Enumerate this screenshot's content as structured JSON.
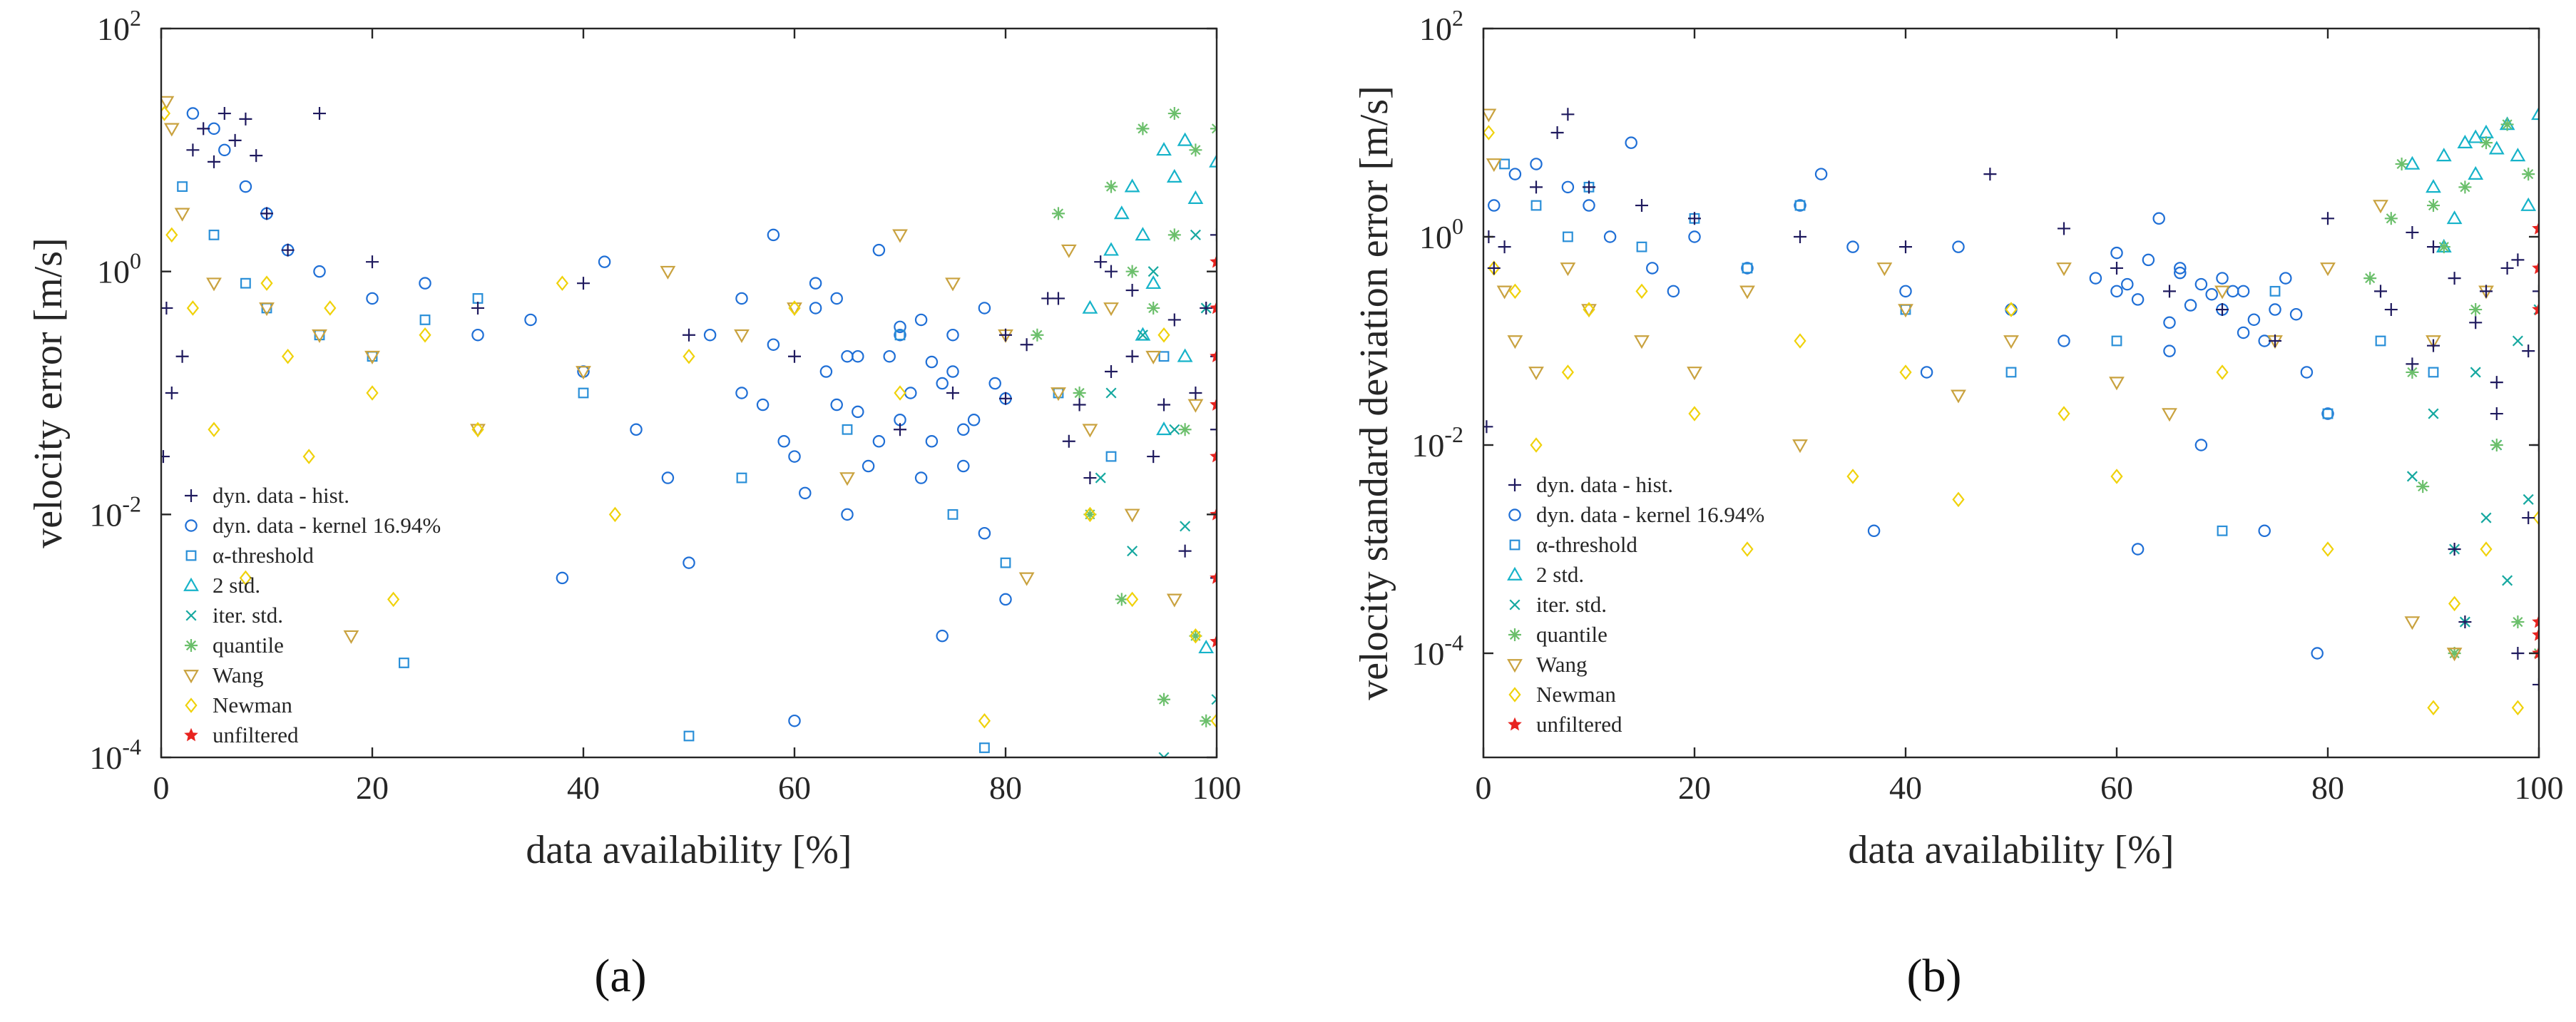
{
  "colors": {
    "hist": "#1f1a5e",
    "kernel": "#1f6fd6",
    "alpha": "#2a8fd8",
    "std2": "#16b3c9",
    "iter": "#16a8a0",
    "quantile": "#6bbf6b",
    "wang": "#c9a23f",
    "newman": "#f0d20a",
    "unfiltered": "#e8231f"
  },
  "legend_labels": {
    "hist": "dyn. data - hist.",
    "kernel": "dyn. data - kernel 16.94%",
    "alpha": "α-threshold",
    "std2": "2 std.",
    "iter": "iter. std.",
    "quantile": "quantile",
    "wang": "Wang",
    "newman": "Newman",
    "unfiltered": "unfiltered"
  },
  "chart_data": [
    {
      "type": "scatter",
      "panel_label": "(a)",
      "xlabel": "data availability [%]",
      "ylabel": "velocity error [m/s]",
      "xlim": [
        0,
        100
      ],
      "ylim": [
        0.0001,
        100
      ],
      "yscale": "log",
      "xticks": [
        0,
        20,
        40,
        60,
        80,
        100
      ],
      "yticks": [
        {
          "base": "10",
          "exp": "-4",
          "value": 0.0001
        },
        {
          "base": "10",
          "exp": "-2",
          "value": 0.01
        },
        {
          "base": "10",
          "exp": "0",
          "value": 1
        },
        {
          "base": "10",
          "exp": "2",
          "value": 100
        }
      ],
      "legend_position": "lower-left",
      "series": [
        {
          "key": "hist",
          "marker": "plus",
          "x": [
            0.2,
            0.5,
            1,
            2,
            3,
            4,
            5,
            6,
            7,
            8,
            9,
            10,
            12,
            15,
            20,
            30,
            40,
            50,
            60,
            70,
            75,
            80,
            85,
            88,
            90,
            92,
            95,
            97,
            99,
            100,
            100,
            100,
            100,
            98,
            96,
            94,
            92,
            90,
            89,
            87,
            86,
            84,
            82,
            80
          ],
          "y": [
            0.03,
            0.5,
            0.1,
            0.2,
            10,
            15,
            8,
            20,
            12,
            18,
            9,
            3,
            1.5,
            20,
            1.2,
            0.5,
            0.8,
            0.3,
            0.2,
            0.05,
            0.1,
            0.3,
            0.6,
            0.02,
            1,
            0.2,
            0.08,
            0.005,
            0.5,
            0.2,
            0.05,
            0.003,
            2,
            0.1,
            0.4,
            0.03,
            0.7,
            0.15,
            1.2,
            0.08,
            0.04,
            0.6,
            0.25,
            0.09
          ]
        },
        {
          "key": "kernel",
          "marker": "circle",
          "x": [
            3,
            5,
            6,
            8,
            10,
            12,
            15,
            20,
            25,
            30,
            35,
            38,
            40,
            42,
            45,
            48,
            50,
            52,
            55,
            58,
            60,
            62,
            64,
            65,
            66,
            68,
            70,
            72,
            74,
            75,
            76,
            78,
            80,
            55,
            60,
            62,
            65,
            68,
            70,
            72,
            74,
            76,
            78,
            80,
            63,
            66,
            69,
            71,
            73,
            75,
            77,
            79,
            67,
            70,
            73,
            58,
            61,
            64,
            57,
            59
          ],
          "y": [
            20,
            15,
            10,
            5,
            3,
            1.5,
            1,
            0.6,
            0.8,
            0.3,
            0.4,
            0.003,
            0.15,
            1.2,
            0.05,
            0.02,
            0.004,
            0.3,
            0.6,
            2,
            0.0002,
            0.5,
            0.08,
            0.01,
            0.2,
            0.04,
            0.3,
            0.02,
            0.001,
            0.15,
            0.05,
            0.007,
            0.002,
            0.1,
            0.03,
            0.8,
            0.2,
            1.5,
            0.06,
            0.4,
            0.12,
            0.025,
            0.5,
            0.09,
            0.15,
            0.07,
            0.2,
            0.1,
            0.04,
            0.3,
            0.06,
            0.12,
            0.025,
            0.35,
            0.18,
            0.25,
            0.015,
            0.6,
            0.08,
            0.04
          ]
        },
        {
          "key": "alpha",
          "marker": "square",
          "x": [
            2,
            5,
            8,
            10,
            15,
            20,
            23,
            25,
            30,
            40,
            50,
            55,
            65,
            70,
            75,
            78,
            80,
            85,
            90,
            95
          ],
          "y": [
            5,
            2,
            0.8,
            0.5,
            0.3,
            0.2,
            0.0006,
            0.4,
            0.6,
            0.1,
            0.00015,
            0.02,
            0.05,
            0.3,
            0.01,
            0.00012,
            0.004,
            0.1,
            0.03,
            0.2
          ]
        },
        {
          "key": "std2",
          "marker": "triangle-up",
          "x": [
            88,
            90,
            91,
            92,
            93,
            94,
            95,
            96,
            97,
            98,
            99,
            100,
            95,
            97,
            93
          ],
          "y": [
            0.5,
            1.5,
            3,
            5,
            2,
            0.8,
            10,
            6,
            0.2,
            4,
            0.0008,
            8,
            0.05,
            12,
            0.3
          ]
        },
        {
          "key": "iter",
          "marker": "cross",
          "x": [
            89,
            90,
            92,
            93,
            94,
            95,
            96,
            97,
            98,
            99,
            100
          ],
          "y": [
            0.02,
            0.1,
            0.005,
            0.3,
            1,
            0.0001,
            0.05,
            0.008,
            2,
            0.5,
            0.0003
          ]
        },
        {
          "key": "quantile",
          "marker": "asterisk",
          "x": [
            83,
            85,
            87,
            88,
            90,
            91,
            92,
            93,
            94,
            95,
            96,
            97,
            98,
            99,
            100,
            96,
            98
          ],
          "y": [
            0.3,
            3,
            0.1,
            0.01,
            5,
            0.002,
            1,
            15,
            0.5,
            0.0003,
            20,
            0.05,
            10,
            0.0002,
            15,
            2,
            0.001
          ]
        },
        {
          "key": "wang",
          "marker": "triangle-down",
          "x": [
            0.5,
            1,
            2,
            5,
            10,
            15,
            18,
            20,
            30,
            40,
            48,
            55,
            60,
            65,
            70,
            75,
            80,
            82,
            85,
            86,
            88,
            90,
            92,
            94,
            96,
            98
          ],
          "y": [
            25,
            15,
            3,
            0.8,
            0.5,
            0.3,
            0.001,
            0.2,
            0.05,
            0.15,
            1,
            0.3,
            0.5,
            0.02,
            2,
            0.8,
            0.3,
            0.003,
            0.1,
            1.5,
            0.05,
            0.5,
            0.01,
            0.2,
            0.002,
            0.08
          ]
        },
        {
          "key": "newman",
          "marker": "diamond",
          "x": [
            0.3,
            1,
            3,
            5,
            8,
            10,
            12,
            14,
            16,
            20,
            22,
            25,
            30,
            38,
            43,
            50,
            60,
            70,
            78,
            88,
            92,
            95,
            98,
            100
          ],
          "y": [
            20,
            2,
            0.5,
            0.05,
            0.003,
            0.8,
            0.2,
            0.03,
            0.5,
            0.1,
            0.002,
            0.3,
            0.05,
            0.8,
            0.01,
            0.2,
            0.5,
            0.1,
            0.0002,
            0.01,
            0.002,
            0.3,
            0.001,
            0.0002
          ]
        },
        {
          "key": "unfiltered",
          "marker": "star",
          "x": [
            100,
            100,
            100,
            100,
            100,
            100,
            100,
            100
          ],
          "y": [
            1.2,
            0.5,
            0.2,
            0.08,
            0.03,
            0.01,
            0.003,
            0.0009
          ]
        }
      ]
    },
    {
      "type": "scatter",
      "panel_label": "(b)",
      "xlabel": "data availability [%]",
      "ylabel": "velocity standard deviation error [m/s]",
      "xlim": [
        0,
        100
      ],
      "ylim": [
        1e-05,
        100
      ],
      "yscale": "log",
      "xticks": [
        0,
        20,
        40,
        60,
        80,
        100
      ],
      "yticks": [
        {
          "base": "10",
          "exp": "-4",
          "value": 0.0001
        },
        {
          "base": "10",
          "exp": "-2",
          "value": 0.01
        },
        {
          "base": "10",
          "exp": "0",
          "value": 1
        },
        {
          "base": "10",
          "exp": "2",
          "value": 100
        }
      ],
      "legend_position": "lower-left",
      "series": [
        {
          "key": "hist",
          "marker": "plus",
          "x": [
            0.3,
            0.5,
            1,
            2,
            5,
            7,
            8,
            10,
            15,
            20,
            30,
            40,
            48,
            55,
            60,
            65,
            70,
            75,
            80,
            85,
            88,
            90,
            92,
            95,
            96,
            97,
            98,
            99,
            100,
            100,
            100,
            99,
            98,
            96,
            94,
            93,
            92,
            90,
            88,
            86
          ],
          "y": [
            0.015,
            1,
            0.5,
            0.8,
            3,
            10,
            15,
            3,
            2,
            1.5,
            1,
            0.8,
            4,
            1.2,
            0.5,
            0.3,
            0.2,
            0.1,
            1.5,
            0.3,
            0.06,
            0.8,
            0.001,
            0.3,
            0.02,
            0.5,
            0.0001,
            0.08,
            5e-05,
            0.3,
            0.01,
            0.002,
            0.6,
            0.04,
            0.15,
            0.0002,
            0.4,
            0.09,
            1.1,
            0.2
          ]
        },
        {
          "key": "kernel",
          "marker": "circle",
          "x": [
            1,
            3,
            5,
            8,
            10,
            12,
            14,
            16,
            18,
            20,
            25,
            30,
            32,
            35,
            37,
            40,
            42,
            45,
            50,
            55,
            58,
            60,
            62,
            64,
            65,
            66,
            68,
            70,
            72,
            74,
            76,
            78,
            79,
            80,
            62,
            65,
            68,
            70,
            72,
            75,
            77,
            63,
            67,
            71,
            74,
            66,
            69,
            73,
            60,
            61
          ],
          "y": [
            2,
            4,
            5,
            3,
            2,
            1,
            8,
            0.5,
            0.3,
            1,
            0.5,
            2,
            4,
            0.8,
            0.0015,
            0.3,
            0.05,
            0.8,
            0.2,
            0.1,
            0.4,
            0.3,
            0.001,
            1.5,
            0.08,
            0.5,
            0.01,
            0.2,
            0.3,
            0.0015,
            0.4,
            0.05,
            0.0001,
            0.02,
            0.25,
            0.15,
            0.35,
            0.4,
            0.12,
            0.2,
            0.18,
            0.6,
            0.22,
            0.3,
            0.1,
            0.45,
            0.28,
            0.16,
            0.7,
            0.35
          ]
        },
        {
          "key": "alpha",
          "marker": "square",
          "x": [
            2,
            5,
            8,
            10,
            15,
            20,
            25,
            30,
            40,
            50,
            60,
            70,
            75,
            80,
            85,
            90
          ],
          "y": [
            5,
            2,
            1,
            3,
            0.8,
            1.5,
            0.5,
            2,
            0.2,
            0.05,
            0.1,
            0.0015,
            0.3,
            0.02,
            0.1,
            0.05
          ]
        },
        {
          "key": "std2",
          "marker": "triangle-up",
          "x": [
            88,
            90,
            91,
            92,
            93,
            94,
            95,
            96,
            97,
            98,
            99,
            100,
            91,
            94
          ],
          "y": [
            5,
            3,
            6,
            1.5,
            8,
            4,
            10,
            7,
            12,
            6,
            2,
            15,
            0.8,
            9
          ]
        },
        {
          "key": "iter",
          "marker": "cross",
          "x": [
            88,
            90,
            92,
            93,
            94,
            95,
            96,
            97,
            98,
            99,
            100
          ],
          "y": [
            0.005,
            0.02,
            0.001,
            0.0002,
            0.05,
            0.002,
            0.01,
            0.0005,
            0.1,
            0.003,
            0.2
          ]
        },
        {
          "key": "quantile",
          "marker": "asterisk",
          "x": [
            84,
            86,
            87,
            88,
            89,
            90,
            91,
            92,
            93,
            94,
            95,
            96,
            97,
            98,
            99,
            100
          ],
          "y": [
            0.4,
            1.5,
            5,
            0.05,
            0.004,
            2,
            0.8,
            0.0001,
            3,
            0.2,
            8,
            0.01,
            12,
            0.0002,
            4,
            0.0001
          ]
        },
        {
          "key": "wang",
          "marker": "triangle-down",
          "x": [
            0.5,
            1,
            2,
            3,
            5,
            8,
            10,
            15,
            20,
            25,
            30,
            38,
            40,
            45,
            50,
            55,
            60,
            65,
            70,
            75,
            80,
            85,
            88,
            90,
            92,
            95
          ],
          "y": [
            15,
            5,
            0.3,
            0.1,
            0.05,
            0.5,
            0.2,
            0.1,
            0.05,
            0.3,
            0.01,
            0.5,
            0.2,
            0.03,
            0.1,
            0.5,
            0.04,
            0.02,
            0.3,
            0.1,
            0.5,
            2,
            0.0002,
            0.1,
            0.0001,
            0.3
          ]
        },
        {
          "key": "newman",
          "marker": "diamond",
          "x": [
            0.5,
            1,
            3,
            5,
            8,
            10,
            15,
            20,
            25,
            30,
            35,
            40,
            45,
            50,
            55,
            60,
            70,
            80,
            90,
            92,
            95,
            98,
            100
          ],
          "y": [
            10,
            0.5,
            0.3,
            0.01,
            0.05,
            0.2,
            0.3,
            0.02,
            0.001,
            0.1,
            0.005,
            0.05,
            0.003,
            0.2,
            0.02,
            0.005,
            0.05,
            0.001,
            3e-05,
            0.0003,
            0.001,
            3e-05,
            0.002
          ]
        },
        {
          "key": "unfiltered",
          "marker": "star",
          "x": [
            100,
            100,
            100,
            100,
            100,
            100
          ],
          "y": [
            1.2,
            0.5,
            0.2,
            0.0002,
            0.00015,
            0.0001
          ]
        }
      ]
    }
  ]
}
